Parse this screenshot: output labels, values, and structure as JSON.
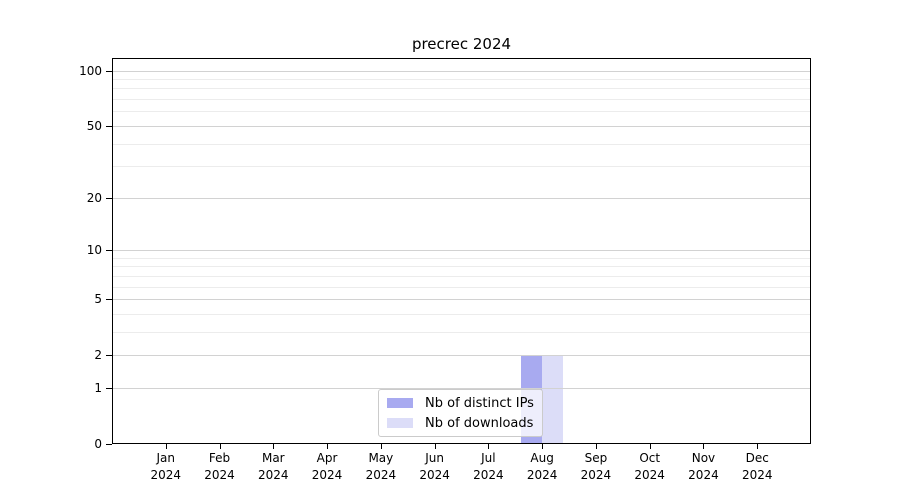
{
  "chart_data": {
    "type": "bar",
    "title": "precrec 2024",
    "categories": [
      {
        "month": "Jan",
        "year": "2024"
      },
      {
        "month": "Feb",
        "year": "2024"
      },
      {
        "month": "Mar",
        "year": "2024"
      },
      {
        "month": "Apr",
        "year": "2024"
      },
      {
        "month": "May",
        "year": "2024"
      },
      {
        "month": "Jun",
        "year": "2024"
      },
      {
        "month": "Jul",
        "year": "2024"
      },
      {
        "month": "Aug",
        "year": "2024"
      },
      {
        "month": "Sep",
        "year": "2024"
      },
      {
        "month": "Oct",
        "year": "2024"
      },
      {
        "month": "Nov",
        "year": "2024"
      },
      {
        "month": "Dec",
        "year": "2024"
      }
    ],
    "series": [
      {
        "name": "Nb of distinct IPs",
        "color": "#a8aaf0",
        "values": [
          0,
          0,
          0,
          0,
          0,
          0,
          0,
          2,
          0,
          0,
          0,
          0
        ]
      },
      {
        "name": "Nb of downloads",
        "color": "#dcddf8",
        "values": [
          0,
          0,
          0,
          0,
          0,
          0,
          0,
          2,
          0,
          0,
          0,
          0
        ]
      }
    ],
    "yscale": "log1p",
    "ylim": [
      0,
      117
    ],
    "yticks": [
      0,
      1,
      2,
      5,
      10,
      20,
      50,
      100
    ],
    "minor_gridlines": [
      3,
      4,
      6,
      7,
      8,
      9,
      30,
      40,
      60,
      70,
      80,
      90
    ],
    "grid": "horizontal",
    "legend_position": "inside-bottom-center",
    "colors": {
      "grid_major": "#d2d2d2",
      "grid_minor": "#ececec",
      "axis": "#000000",
      "text": "#000000"
    }
  }
}
